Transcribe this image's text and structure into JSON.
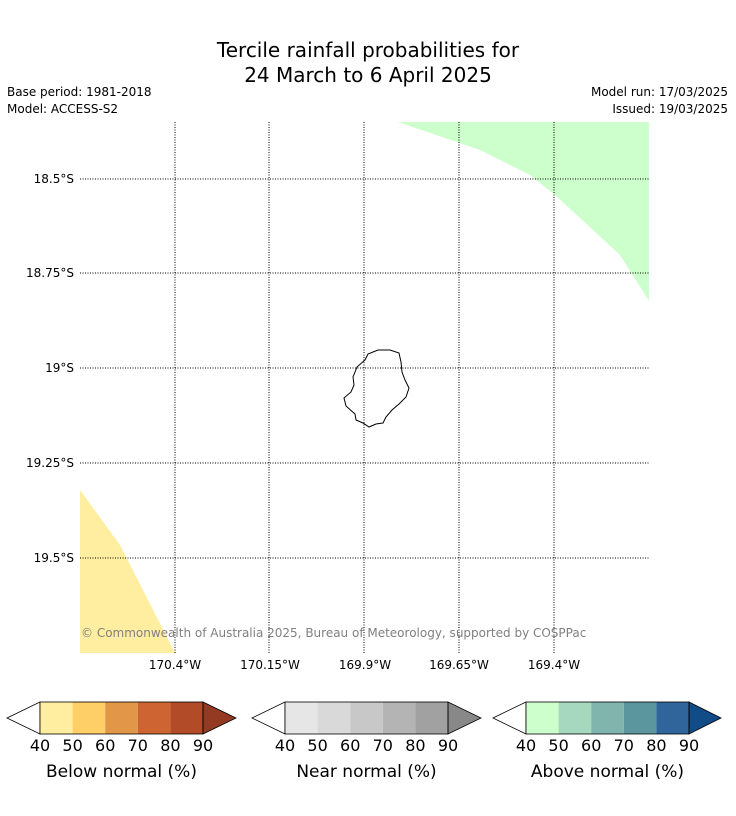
{
  "title": {
    "line1": "Tercile rainfall probabilities for",
    "line2": "24 March to 6 April 2025"
  },
  "meta": {
    "base_period": "Base period: 1981-2018",
    "model": "Model: ACCESS-S2",
    "model_run": "Model run: 17/03/2025",
    "issued": "Issued: 19/03/2025"
  },
  "map": {
    "latitudes": [
      "18.5°S",
      "18.75°S",
      "19°S",
      "19.25°S",
      "19.5°S"
    ],
    "longitudes": [
      "170.4°W",
      "170.15°W",
      "169.9°W",
      "169.65°W",
      "169.4°W"
    ],
    "island": "Niue",
    "copyright": "© Commonwealth of Australia 2025, Bureau of Meteorology, supported by COSPPac",
    "region_colors": {
      "above_normal_region": "#ccffcc",
      "below_normal_region": "#ffeda0"
    }
  },
  "legends": [
    {
      "title": "Below normal (%)",
      "ticks": [
        "40",
        "50",
        "60",
        "70",
        "80",
        "90"
      ],
      "colors": [
        "#ffffff",
        "#ffeda0",
        "#fecf66",
        "#e29647",
        "#cd6431",
        "#b24b27",
        "#943a23"
      ]
    },
    {
      "title": "Near normal (%)",
      "ticks": [
        "40",
        "50",
        "60",
        "70",
        "80",
        "90"
      ],
      "colors": [
        "#ffffff",
        "#e6e6e6",
        "#d9d9d9",
        "#c8c8c8",
        "#b4b4b4",
        "#a1a1a1",
        "#888888"
      ]
    },
    {
      "title": "Above normal (%)",
      "ticks": [
        "40",
        "50",
        "60",
        "70",
        "80",
        "90"
      ],
      "colors": [
        "#ffffff",
        "#ccffcc",
        "#a6d8bf",
        "#80b5ae",
        "#5b969f",
        "#30659b",
        "#114b88"
      ]
    }
  ]
}
